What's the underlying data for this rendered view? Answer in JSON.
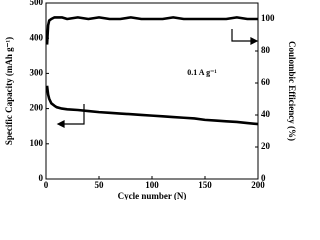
{
  "chart_data": {
    "type": "line",
    "x_label": "Cycle number (N)",
    "y_label": "Specific Capacity (mAh g⁻¹)",
    "y2_label": "Coulombic Efficiency (%)",
    "annotation": "0.1 A g⁻¹",
    "x": [
      1,
      2,
      3,
      5,
      8,
      10,
      15,
      20,
      30,
      40,
      50,
      60,
      70,
      80,
      90,
      100,
      110,
      120,
      130,
      140,
      150,
      160,
      170,
      180,
      190,
      200
    ],
    "series": [
      {
        "name": "Specific Capacity",
        "color": "#000000",
        "axis": "y",
        "values": [
          265,
          240,
          228,
          215,
          208,
          204,
          200,
          198,
          196,
          193,
          190,
          188,
          186,
          184,
          182,
          180,
          178,
          176,
          174,
          172,
          168,
          166,
          164,
          162,
          159,
          156
        ]
      },
      {
        "name": "Coulombic Efficiency",
        "color": "#000000",
        "axis": "y2",
        "values": [
          84,
          96,
          99,
          100,
          101,
          101,
          101,
          100,
          101,
          100,
          101,
          100,
          100,
          101,
          100,
          100,
          100,
          101,
          100,
          100,
          100,
          100,
          100,
          101,
          100,
          100
        ]
      }
    ],
    "xlim": [
      0,
      200
    ],
    "xticks": [
      0,
      50,
      100,
      150,
      200
    ],
    "ylim": [
      0,
      500
    ],
    "yticks": [
      0,
      100,
      200,
      300,
      400,
      500
    ],
    "y2lim": [
      0,
      110
    ],
    "y2ticks": [
      0,
      20,
      40,
      60,
      80,
      100
    ]
  }
}
